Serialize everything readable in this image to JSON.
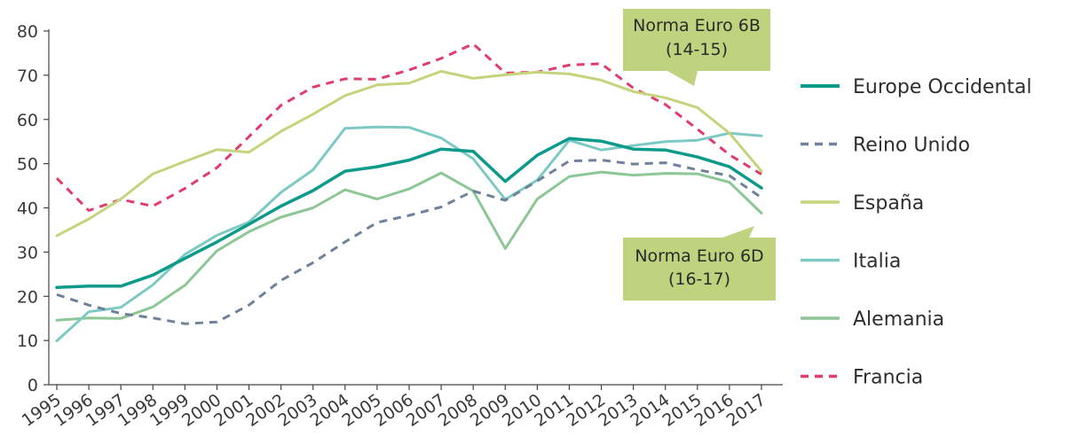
{
  "chart_data": {
    "type": "line",
    "title": "",
    "xlabel": "",
    "ylabel": "",
    "ylim": [
      0,
      80
    ],
    "yticks": [
      0,
      10,
      20,
      30,
      40,
      50,
      60,
      70,
      80
    ],
    "grid": false,
    "legend_position": "right",
    "x": [
      "1995",
      "1996",
      "1997",
      "1998",
      "1999",
      "2000",
      "2001",
      "2002",
      "2003",
      "2004",
      "2005",
      "2006",
      "2007",
      "2008",
      "2009",
      "2010",
      "2011",
      "2012",
      "2013",
      "2014",
      "2015",
      "2016",
      "2017"
    ],
    "series": [
      {
        "name": "Europe Occidental",
        "color": "#0c9a8a",
        "dash": "solid",
        "width": 3.5,
        "values": [
          22,
          22.3,
          22.3,
          24.8,
          28.6,
          32.3,
          36.3,
          40.4,
          43.9,
          48.3,
          49.3,
          50.8,
          53.3,
          52.8,
          46,
          51.9,
          55.7,
          55.1,
          53.3,
          53.1,
          51.5,
          49.3,
          44.5
        ]
      },
      {
        "name": "Reino Unido",
        "color": "#6f819b",
        "dash": "dashed",
        "width": 3,
        "values": [
          20.4,
          18,
          16.1,
          15.1,
          13.8,
          14.2,
          18,
          23.6,
          27.6,
          32.3,
          36.7,
          38.3,
          40.2,
          43.8,
          41.7,
          46.1,
          50.6,
          50.8,
          49.9,
          50.2,
          48.6,
          47.3,
          42.3
        ]
      },
      {
        "name": "España",
        "color": "#c6d37c",
        "dash": "solid",
        "width": 3,
        "values": [
          33.7,
          37.5,
          42,
          47.7,
          50.5,
          53.2,
          52.6,
          57.3,
          61.2,
          65.4,
          67.8,
          68.2,
          70.9,
          69.3,
          70.1,
          70.7,
          70.3,
          68.9,
          66.3,
          64.9,
          62.7,
          56.9,
          48.3
        ]
      },
      {
        "name": "Italia",
        "color": "#7ccac3",
        "dash": "solid",
        "width": 3,
        "values": [
          9.9,
          16.5,
          17.5,
          22.6,
          29.5,
          33.8,
          36.8,
          43.5,
          48.6,
          58,
          58.3,
          58.2,
          55.8,
          51.1,
          41.9,
          46.3,
          55.3,
          53.1,
          54.1,
          55,
          55.3,
          56.9,
          56.3
        ]
      },
      {
        "name": "Alemania",
        "color": "#8cc795",
        "dash": "solid",
        "width": 3,
        "values": [
          14.6,
          15.1,
          15,
          17.6,
          22.5,
          30.3,
          34.6,
          37.9,
          40,
          44.1,
          42,
          44.3,
          47.9,
          43.8,
          30.8,
          42,
          47.1,
          48.1,
          47.4,
          47.8,
          47.7,
          45.8,
          38.8
        ]
      },
      {
        "name": "Francia",
        "color": "#e03d6c",
        "dash": "dashed",
        "width": 3,
        "values": [
          46.7,
          39.4,
          41.9,
          40.4,
          44.4,
          49.1,
          56.1,
          63.2,
          67.3,
          69.2,
          69.1,
          71.2,
          73.8,
          77.1,
          70.5,
          70.7,
          72.3,
          72.6,
          67.1,
          63.4,
          57.8,
          52,
          47.6
        ]
      }
    ],
    "annotations": [
      {
        "line1": "Norma Euro 6B",
        "line2": "(14-15)",
        "fill": "#bfd37f",
        "pointer": "down-right"
      },
      {
        "line1": "Norma Euro 6D",
        "line2": "(16-17)",
        "fill": "#bfd37f",
        "pointer": "up-right"
      }
    ]
  }
}
